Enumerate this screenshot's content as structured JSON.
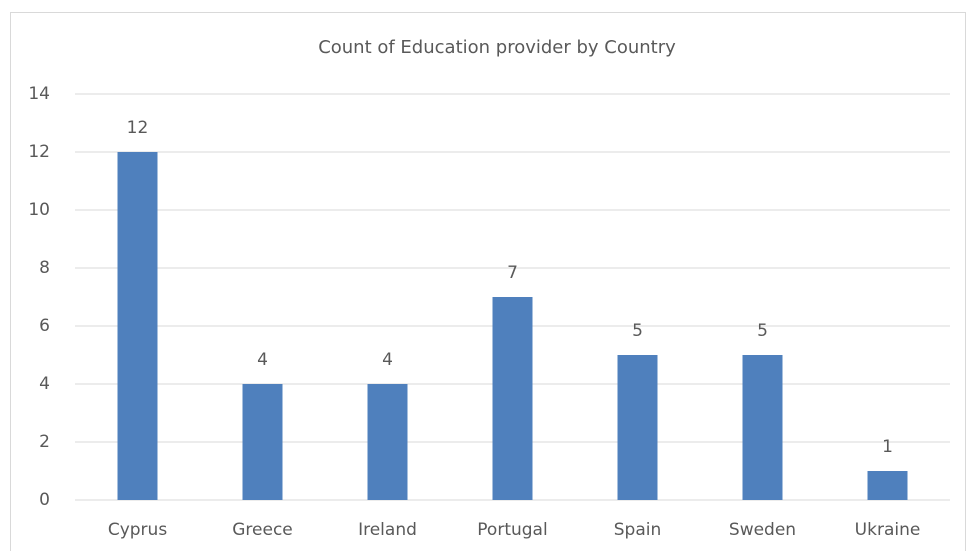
{
  "chart_data": {
    "type": "bar",
    "title": "Count of Education provider by Country",
    "categories": [
      "Cyprus",
      "Greece",
      "Ireland",
      "Portugal",
      "Spain",
      "Sweden",
      "Ukraine"
    ],
    "values": [
      12,
      4,
      4,
      7,
      5,
      5,
      1
    ],
    "color": "#4f80bd",
    "ylim": [
      0,
      14
    ],
    "yticks": [
      0,
      2,
      4,
      6,
      8,
      10,
      12,
      14
    ],
    "grid": true
  }
}
